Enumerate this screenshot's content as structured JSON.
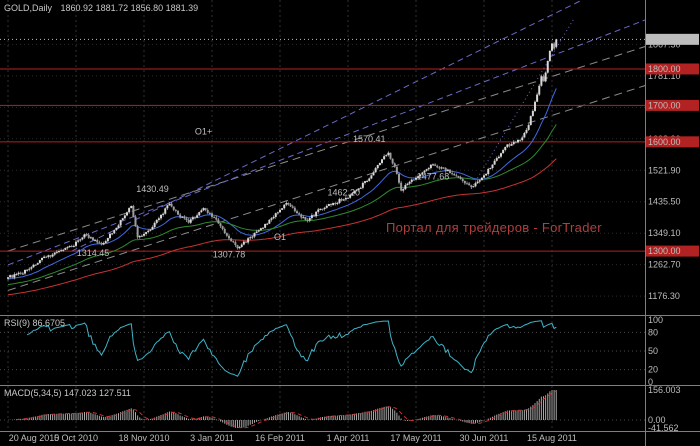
{
  "window": {
    "title": "GOLD,Daily",
    "ohlc_text": "1860.92 1881.72 1856.80 1881.39"
  },
  "indicators": {
    "rsi_label": "RSI(9) 86.6705",
    "macd_label": "MACD(5,34,5) 147.023 127.511"
  },
  "watermark": {
    "text": "Портал для трейдеров - ForTrader"
  },
  "time_axis": {
    "labels": [
      "20 Aug 2010",
      "5 Oct 2010",
      "18 Nov 2010",
      "3 Jan 2011",
      "16 Feb 2011",
      "1 Apr 2011",
      "17 May 2011",
      "30 Jun 2011",
      "15 Aug 2011"
    ],
    "tick_days": [
      0,
      32,
      64,
      96,
      128,
      160,
      192,
      224,
      256
    ]
  },
  "colors": {
    "background": "#000000",
    "grid": "#2F2F2F",
    "grid_dot": "#2A2A2A",
    "candle_up": "#D8D8D8",
    "candle_down": "#9C9C9C",
    "wick": "#B0B0B0",
    "ma_fast": "#4169E1",
    "ma_mid": "#2E8B2E",
    "ma_slow": "#C83232",
    "hline": "#B22222",
    "channel_blue": "#6A6AC8",
    "channel_gray": "#8C8C8C",
    "rsi_line": "#3FB3C8",
    "rsi_level": "#4A4A4A",
    "macd_hist": "#A8A8A8",
    "macd_signal": "#C83232",
    "axis_text": "#BEBEBE",
    "box_red": "#B22222",
    "box_red_text": "#FFFFFF",
    "box_current": "#BDBDBD",
    "box_current_text": "#000000",
    "separator": "#7F7F7F",
    "annotation": "#D8D8D8",
    "watermark": "#B23E3E"
  },
  "chart_data": [
    {
      "type": "candlestick",
      "symbol": "GOLD",
      "timeframe": "Daily",
      "title": "GOLD,Daily",
      "last": {
        "open": 1860.92,
        "high": 1881.72,
        "low": 1856.8,
        "close": 1881.39
      },
      "current_price": 1881.39,
      "days_total": 259,
      "y_range": [
        1130,
        1940
      ],
      "gridline_prices": [
        1867.5,
        1781.1,
        1694.7,
        1608.3,
        1521.9,
        1435.5,
        1349.1,
        1262.7,
        1176.3
      ],
      "hlines": [
        1800.0,
        1700.0,
        1600.0,
        1300.0
      ],
      "ma_periods": {
        "fast": 20,
        "mid": 50,
        "slow": 120
      },
      "anchors": [
        [
          0,
          1228
        ],
        [
          6,
          1238
        ],
        [
          12,
          1262
        ],
        [
          18,
          1284
        ],
        [
          24,
          1300
        ],
        [
          30,
          1312
        ],
        [
          36,
          1346
        ],
        [
          40,
          1330
        ],
        [
          44,
          1318
        ],
        [
          50,
          1358
        ],
        [
          55,
          1398
        ],
        [
          58,
          1424
        ],
        [
          61,
          1338
        ],
        [
          66,
          1356
        ],
        [
          71,
          1390
        ],
        [
          76,
          1430
        ],
        [
          80,
          1400
        ],
        [
          85,
          1378
        ],
        [
          92,
          1418
        ],
        [
          97,
          1392
        ],
        [
          103,
          1342
        ],
        [
          108,
          1308
        ],
        [
          114,
          1338
        ],
        [
          120,
          1364
        ],
        [
          126,
          1404
        ],
        [
          131,
          1432
        ],
        [
          136,
          1404
        ],
        [
          141,
          1384
        ],
        [
          147,
          1416
        ],
        [
          153,
          1432
        ],
        [
          159,
          1446
        ],
        [
          165,
          1472
        ],
        [
          171,
          1508
        ],
        [
          176,
          1552
        ],
        [
          179,
          1570
        ],
        [
          182,
          1532
        ],
        [
          185,
          1466
        ],
        [
          189,
          1490
        ],
        [
          194,
          1510
        ],
        [
          200,
          1538
        ],
        [
          205,
          1528
        ],
        [
          210,
          1508
        ],
        [
          215,
          1486
        ],
        [
          219,
          1478
        ],
        [
          224,
          1508
        ],
        [
          229,
          1548
        ],
        [
          234,
          1586
        ],
        [
          238,
          1600
        ],
        [
          242,
          1612
        ],
        [
          245,
          1646
        ],
        [
          248,
          1710
        ],
        [
          250,
          1754
        ],
        [
          251,
          1780
        ],
        [
          252,
          1766
        ],
        [
          253,
          1790
        ],
        [
          254,
          1822
        ],
        [
          255,
          1850
        ],
        [
          256,
          1870
        ],
        [
          257,
          1856
        ],
        [
          258,
          1881.39
        ]
      ],
      "trendlines": [
        {
          "color_key": "channel_gray",
          "dash": "8,5",
          "from": [
            0,
            1192
          ],
          "to": [
            300,
            1755
          ]
        },
        {
          "color_key": "channel_gray",
          "dash": "8,5",
          "from": [
            0,
            1300
          ],
          "to": [
            300,
            1862
          ]
        },
        {
          "color_key": "channel_blue",
          "dash": "6,4",
          "from": [
            0,
            1262
          ],
          "to": [
            300,
            1935
          ]
        },
        {
          "color_key": "channel_blue",
          "dash": "6,4",
          "from": [
            30,
            1300
          ],
          "to": [
            300,
            2075
          ]
        },
        {
          "color_key": "channel_blue",
          "dash": "1,3",
          "from": [
            218,
            1472
          ],
          "to": [
            266,
            1935
          ]
        }
      ],
      "annotations": [
        {
          "text": "1430.49",
          "day": 68,
          "price": 1462
        },
        {
          "text": "1314.45",
          "day": 40,
          "price": 1286
        },
        {
          "text": "1307.78",
          "day": 104,
          "price": 1282
        },
        {
          "text": "1570.41",
          "day": 170,
          "price": 1600
        },
        {
          "text": "1462.20",
          "day": 158,
          "price": 1452
        },
        {
          "text": "1477.68",
          "day": 200,
          "price": 1496
        },
        {
          "text": "O1+",
          "day": 92,
          "price": 1620
        },
        {
          "text": "O1",
          "day": 128,
          "price": 1330
        }
      ]
    },
    {
      "type": "line",
      "name": "RSI",
      "period": 9,
      "current": 86.6705,
      "y_range": [
        0,
        100
      ],
      "levels": [
        80,
        50,
        20
      ],
      "axis_labels": [
        100,
        80,
        50,
        20,
        0
      ]
    },
    {
      "type": "bar",
      "name": "MACD",
      "params": [
        5,
        34,
        5
      ],
      "current_main": 147.023,
      "current_signal": 127.511,
      "y_range": [
        -41.562,
        156.003
      ],
      "axis_labels": [
        "156.003",
        "0.00",
        "-41.562"
      ]
    }
  ]
}
